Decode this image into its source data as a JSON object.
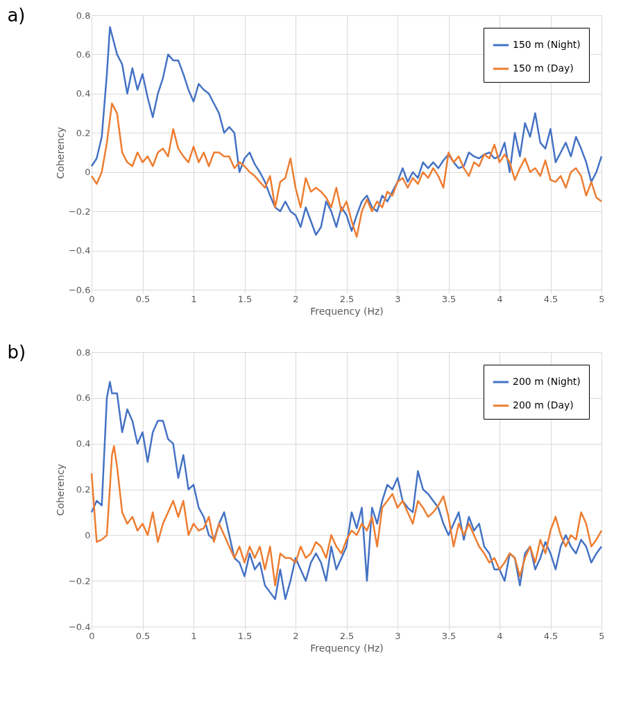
{
  "chart_data": [
    {
      "type": "line",
      "title": "a)",
      "xlabel": "Frequency (Hz)",
      "ylabel": "Coherency",
      "xlim": [
        0,
        5
      ],
      "ylim": [
        -0.6,
        0.8
      ],
      "xticks": [
        0,
        0.5,
        1,
        1.5,
        2,
        2.5,
        3,
        3.5,
        4,
        4.5,
        5
      ],
      "yticks": [
        -0.6,
        -0.4,
        -0.2,
        0,
        0.2,
        0.4,
        0.6,
        0.8
      ],
      "grid": true,
      "legend": "top right",
      "line_style": "solid",
      "series": [
        {
          "name": "150 m (Night)",
          "color": "#4472c4",
          "x": [
            0,
            0.05,
            0.1,
            0.15,
            0.18,
            0.2,
            0.25,
            0.3,
            0.35,
            0.4,
            0.45,
            0.5,
            0.55,
            0.6,
            0.65,
            0.7,
            0.75,
            0.8,
            0.85,
            0.9,
            0.95,
            1.0,
            1.05,
            1.1,
            1.15,
            1.2,
            1.25,
            1.3,
            1.35,
            1.4,
            1.45,
            1.5,
            1.55,
            1.6,
            1.65,
            1.7,
            1.75,
            1.8,
            1.85,
            1.9,
            1.95,
            2.0,
            2.05,
            2.1,
            2.15,
            2.2,
            2.25,
            2.3,
            2.35,
            2.4,
            2.45,
            2.5,
            2.55,
            2.6,
            2.65,
            2.7,
            2.75,
            2.8,
            2.85,
            2.9,
            2.95,
            3.0,
            3.05,
            3.1,
            3.15,
            3.2,
            3.25,
            3.3,
            3.35,
            3.4,
            3.45,
            3.5,
            3.55,
            3.6,
            3.65,
            3.7,
            3.75,
            3.8,
            3.85,
            3.9,
            3.95,
            4.0,
            4.05,
            4.1,
            4.15,
            4.2,
            4.25,
            4.3,
            4.35,
            4.4,
            4.45,
            4.5,
            4.55,
            4.6,
            4.65,
            4.7,
            4.75,
            4.8,
            4.85,
            4.9,
            4.95,
            5.0
          ],
          "values": [
            0.03,
            0.07,
            0.18,
            0.5,
            0.74,
            0.7,
            0.6,
            0.55,
            0.4,
            0.53,
            0.42,
            0.5,
            0.38,
            0.28,
            0.4,
            0.48,
            0.6,
            0.57,
            0.57,
            0.5,
            0.42,
            0.36,
            0.45,
            0.42,
            0.4,
            0.35,
            0.3,
            0.2,
            0.23,
            0.2,
            0.0,
            0.07,
            0.1,
            0.04,
            0.0,
            -0.05,
            -0.12,
            -0.18,
            -0.2,
            -0.15,
            -0.2,
            -0.22,
            -0.28,
            -0.18,
            -0.25,
            -0.32,
            -0.28,
            -0.15,
            -0.2,
            -0.28,
            -0.18,
            -0.22,
            -0.3,
            -0.22,
            -0.15,
            -0.12,
            -0.18,
            -0.2,
            -0.12,
            -0.15,
            -0.1,
            -0.05,
            0.02,
            -0.05,
            0.0,
            -0.03,
            0.05,
            0.02,
            0.05,
            0.02,
            0.06,
            0.09,
            0.05,
            0.02,
            0.03,
            0.1,
            0.08,
            0.07,
            0.09,
            0.1,
            0.07,
            0.08,
            0.15,
            0.0,
            0.2,
            0.08,
            0.25,
            0.18,
            0.3,
            0.15,
            0.12,
            0.22,
            0.05,
            0.1,
            0.15,
            0.08,
            0.18,
            0.12,
            0.05,
            -0.05,
            0.0,
            0.08
          ]
        },
        {
          "name": "150 m (Day)",
          "color": "#ed7d31",
          "x": [
            0,
            0.05,
            0.1,
            0.15,
            0.2,
            0.25,
            0.3,
            0.35,
            0.4,
            0.45,
            0.5,
            0.55,
            0.6,
            0.65,
            0.7,
            0.75,
            0.8,
            0.85,
            0.9,
            0.95,
            1.0,
            1.05,
            1.1,
            1.15,
            1.2,
            1.25,
            1.3,
            1.35,
            1.4,
            1.45,
            1.5,
            1.55,
            1.6,
            1.65,
            1.7,
            1.75,
            1.8,
            1.85,
            1.9,
            1.95,
            2.0,
            2.05,
            2.1,
            2.15,
            2.2,
            2.25,
            2.3,
            2.35,
            2.4,
            2.45,
            2.5,
            2.55,
            2.6,
            2.65,
            2.7,
            2.75,
            2.8,
            2.85,
            2.9,
            2.95,
            3.0,
            3.05,
            3.1,
            3.15,
            3.2,
            3.25,
            3.3,
            3.35,
            3.4,
            3.45,
            3.5,
            3.55,
            3.6,
            3.65,
            3.7,
            3.75,
            3.8,
            3.85,
            3.9,
            3.95,
            4.0,
            4.05,
            4.1,
            4.15,
            4.2,
            4.25,
            4.3,
            4.35,
            4.4,
            4.45,
            4.5,
            4.55,
            4.6,
            4.65,
            4.7,
            4.75,
            4.8,
            4.85,
            4.9,
            4.95,
            5.0
          ],
          "values": [
            -0.02,
            -0.06,
            0.0,
            0.15,
            0.35,
            0.3,
            0.1,
            0.05,
            0.03,
            0.1,
            0.05,
            0.08,
            0.03,
            0.1,
            0.12,
            0.08,
            0.22,
            0.12,
            0.08,
            0.05,
            0.13,
            0.05,
            0.1,
            0.03,
            0.1,
            0.1,
            0.08,
            0.08,
            0.02,
            0.05,
            0.03,
            0.0,
            -0.02,
            -0.05,
            -0.08,
            -0.02,
            -0.18,
            -0.05,
            -0.03,
            0.07,
            -0.08,
            -0.18,
            -0.03,
            -0.1,
            -0.08,
            -0.1,
            -0.13,
            -0.18,
            -0.08,
            -0.2,
            -0.15,
            -0.25,
            -0.33,
            -0.2,
            -0.14,
            -0.2,
            -0.15,
            -0.18,
            -0.1,
            -0.12,
            -0.05,
            -0.03,
            -0.08,
            -0.03,
            -0.06,
            0.0,
            -0.03,
            0.02,
            -0.02,
            -0.08,
            0.1,
            0.05,
            0.08,
            0.02,
            -0.02,
            0.05,
            0.03,
            0.09,
            0.07,
            0.14,
            0.05,
            0.09,
            0.05,
            -0.04,
            0.02,
            0.07,
            0.0,
            0.02,
            -0.02,
            0.06,
            -0.04,
            -0.05,
            -0.02,
            -0.08,
            0.0,
            0.02,
            -0.02,
            -0.12,
            -0.05,
            -0.13,
            -0.15
          ]
        }
      ]
    },
    {
      "type": "line",
      "title": "b)",
      "xlabel": "Frequency (Hz)",
      "ylabel": "Coherency",
      "xlim": [
        0,
        5
      ],
      "ylim": [
        -0.4,
        0.8
      ],
      "xticks": [
        0,
        0.5,
        1,
        1.5,
        2,
        2.5,
        3,
        3.5,
        4,
        4.5,
        5
      ],
      "yticks": [
        -0.4,
        -0.2,
        0,
        0.2,
        0.4,
        0.6,
        0.8
      ],
      "grid": true,
      "legend": "top right",
      "line_style": "solid",
      "series": [
        {
          "name": "200 m (Night)",
          "color": "#4472c4",
          "x": [
            0,
            0.05,
            0.1,
            0.15,
            0.18,
            0.2,
            0.25,
            0.3,
            0.35,
            0.4,
            0.45,
            0.5,
            0.55,
            0.6,
            0.65,
            0.7,
            0.75,
            0.8,
            0.85,
            0.9,
            0.95,
            1.0,
            1.05,
            1.1,
            1.15,
            1.2,
            1.25,
            1.3,
            1.35,
            1.4,
            1.45,
            1.5,
            1.55,
            1.6,
            1.65,
            1.7,
            1.75,
            1.8,
            1.85,
            1.9,
            1.95,
            2.0,
            2.05,
            2.1,
            2.15,
            2.2,
            2.25,
            2.3,
            2.35,
            2.4,
            2.45,
            2.5,
            2.55,
            2.6,
            2.65,
            2.7,
            2.75,
            2.8,
            2.85,
            2.9,
            2.95,
            3.0,
            3.05,
            3.1,
            3.15,
            3.2,
            3.25,
            3.3,
            3.35,
            3.4,
            3.45,
            3.5,
            3.55,
            3.6,
            3.65,
            3.7,
            3.75,
            3.8,
            3.85,
            3.9,
            3.95,
            4.0,
            4.05,
            4.1,
            4.15,
            4.2,
            4.25,
            4.3,
            4.35,
            4.4,
            4.45,
            4.5,
            4.55,
            4.6,
            4.65,
            4.7,
            4.75,
            4.8,
            4.85,
            4.9,
            4.95,
            5.0
          ],
          "values": [
            0.1,
            0.15,
            0.13,
            0.6,
            0.67,
            0.62,
            0.62,
            0.45,
            0.55,
            0.5,
            0.4,
            0.45,
            0.32,
            0.45,
            0.5,
            0.5,
            0.42,
            0.4,
            0.25,
            0.35,
            0.2,
            0.22,
            0.12,
            0.08,
            0.0,
            -0.02,
            0.05,
            0.1,
            0.0,
            -0.1,
            -0.12,
            -0.18,
            -0.08,
            -0.15,
            -0.12,
            -0.22,
            -0.25,
            -0.28,
            -0.15,
            -0.28,
            -0.2,
            -0.1,
            -0.15,
            -0.2,
            -0.12,
            -0.08,
            -0.12,
            -0.2,
            -0.05,
            -0.15,
            -0.1,
            -0.05,
            0.1,
            0.03,
            0.12,
            -0.2,
            0.12,
            0.05,
            0.15,
            0.22,
            0.2,
            0.25,
            0.15,
            0.12,
            0.1,
            0.28,
            0.2,
            0.18,
            0.15,
            0.12,
            0.05,
            0.0,
            0.05,
            0.1,
            -0.02,
            0.08,
            0.02,
            0.05,
            -0.05,
            -0.08,
            -0.15,
            -0.15,
            -0.2,
            -0.08,
            -0.1,
            -0.22,
            -0.08,
            -0.05,
            -0.15,
            -0.1,
            -0.03,
            -0.08,
            -0.15,
            -0.05,
            0.0,
            -0.05,
            -0.08,
            -0.02,
            -0.05,
            -0.12,
            -0.08,
            -0.05
          ]
        },
        {
          "name": "200 m (Day)",
          "color": "#ed7d31",
          "x": [
            0,
            0.05,
            0.1,
            0.15,
            0.2,
            0.22,
            0.25,
            0.3,
            0.35,
            0.4,
            0.45,
            0.5,
            0.55,
            0.6,
            0.65,
            0.7,
            0.75,
            0.8,
            0.85,
            0.9,
            0.95,
            1.0,
            1.05,
            1.1,
            1.15,
            1.2,
            1.25,
            1.3,
            1.35,
            1.4,
            1.45,
            1.5,
            1.55,
            1.6,
            1.65,
            1.7,
            1.75,
            1.8,
            1.85,
            1.9,
            1.95,
            2.0,
            2.05,
            2.1,
            2.15,
            2.2,
            2.25,
            2.3,
            2.35,
            2.4,
            2.45,
            2.5,
            2.55,
            2.6,
            2.65,
            2.7,
            2.75,
            2.8,
            2.85,
            2.9,
            2.95,
            3.0,
            3.05,
            3.1,
            3.15,
            3.2,
            3.25,
            3.3,
            3.35,
            3.4,
            3.45,
            3.5,
            3.55,
            3.6,
            3.65,
            3.7,
            3.75,
            3.8,
            3.85,
            3.9,
            3.95,
            4.0,
            4.05,
            4.1,
            4.15,
            4.2,
            4.25,
            4.3,
            4.35,
            4.4,
            4.45,
            4.5,
            4.55,
            4.6,
            4.65,
            4.7,
            4.75,
            4.8,
            4.85,
            4.9,
            4.95,
            5.0
          ],
          "values": [
            0.27,
            -0.03,
            -0.02,
            0.0,
            0.35,
            0.39,
            0.3,
            0.1,
            0.05,
            0.08,
            0.02,
            0.05,
            0.0,
            0.1,
            -0.03,
            0.05,
            0.1,
            0.15,
            0.08,
            0.15,
            0.0,
            0.05,
            0.02,
            0.03,
            0.08,
            -0.03,
            0.05,
            0.0,
            -0.05,
            -0.1,
            -0.05,
            -0.12,
            -0.05,
            -0.1,
            -0.05,
            -0.15,
            -0.05,
            -0.22,
            -0.08,
            -0.1,
            -0.1,
            -0.12,
            -0.05,
            -0.1,
            -0.08,
            -0.03,
            -0.05,
            -0.1,
            0.0,
            -0.05,
            -0.08,
            -0.02,
            0.02,
            0.0,
            0.05,
            0.02,
            0.08,
            -0.05,
            0.12,
            0.15,
            0.18,
            0.12,
            0.15,
            0.1,
            0.05,
            0.15,
            0.12,
            0.08,
            0.1,
            0.13,
            0.17,
            0.08,
            -0.05,
            0.05,
            0.0,
            0.05,
            0.0,
            -0.05,
            -0.08,
            -0.12,
            -0.1,
            -0.15,
            -0.12,
            -0.08,
            -0.1,
            -0.18,
            -0.1,
            -0.05,
            -0.12,
            -0.02,
            -0.08,
            0.02,
            0.08,
            0.0,
            -0.05,
            0.0,
            -0.02,
            0.1,
            0.05,
            -0.05,
            -0.02,
            0.02
          ]
        }
      ]
    }
  ]
}
